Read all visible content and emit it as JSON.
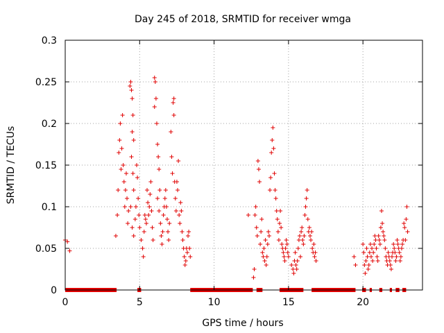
{
  "chart_data": {
    "type": "scatter",
    "title": "Day 245 of 2018, SRMTID for receiver wmga",
    "xlabel": "GPS time / hours",
    "ylabel": "SRMTID / TECUs",
    "xlim": [
      0,
      24
    ],
    "ylim": [
      0,
      0.3
    ],
    "xticks": [
      0,
      5,
      10,
      15,
      20
    ],
    "xtick_labels": [
      "0",
      "5",
      "10",
      "15",
      "20"
    ],
    "yticks": [
      0,
      0.05,
      0.1,
      0.15,
      0.2,
      0.25,
      0.3
    ],
    "ytick_labels": [
      "0",
      "0.05",
      "0.1",
      "0.15",
      "0.2",
      "0.25",
      "0.3"
    ],
    "grid": true,
    "marker": "+",
    "marker_color": "#e00000",
    "series": [
      {
        "name": "SRMTID",
        "points": [
          [
            0.0,
            0.06
          ],
          [
            0.15,
            0.058
          ],
          [
            0.3,
            0.047
          ],
          [
            3.4,
            0.065
          ],
          [
            3.5,
            0.09
          ],
          [
            3.55,
            0.12
          ],
          [
            3.6,
            0.165
          ],
          [
            3.65,
            0.18
          ],
          [
            3.7,
            0.2
          ],
          [
            3.75,
            0.145
          ],
          [
            3.8,
            0.17
          ],
          [
            3.85,
            0.21
          ],
          [
            3.9,
            0.15
          ],
          [
            3.95,
            0.13
          ],
          [
            4.0,
            0.1
          ],
          [
            4.05,
            0.12
          ],
          [
            4.1,
            0.14
          ],
          [
            4.15,
            0.11
          ],
          [
            4.2,
            0.08
          ],
          [
            4.25,
            0.095
          ],
          [
            4.35,
            0.245
          ],
          [
            4.4,
            0.25
          ],
          [
            4.45,
            0.24
          ],
          [
            4.5,
            0.23
          ],
          [
            4.55,
            0.21
          ],
          [
            4.5,
            0.19
          ],
          [
            4.6,
            0.18
          ],
          [
            4.45,
            0.16
          ],
          [
            4.55,
            0.14
          ],
          [
            4.6,
            0.12
          ],
          [
            4.4,
            0.1
          ],
          [
            4.5,
            0.075
          ],
          [
            4.6,
            0.065
          ],
          [
            4.7,
            0.085
          ],
          [
            4.75,
            0.1
          ],
          [
            4.8,
            0.15
          ],
          [
            4.85,
            0.135
          ],
          [
            4.9,
            0.11
          ],
          [
            4.95,
            0.09
          ],
          [
            5.0,
            0.075
          ],
          [
            5.1,
            0.06
          ],
          [
            5.2,
            0.05
          ],
          [
            5.25,
            0.04
          ],
          [
            5.3,
            0.07
          ],
          [
            5.35,
            0.09
          ],
          [
            5.4,
            0.085
          ],
          [
            5.45,
            0.08
          ],
          [
            5.5,
            0.12
          ],
          [
            5.55,
            0.105
          ],
          [
            5.6,
            0.09
          ],
          [
            5.65,
            0.1
          ],
          [
            5.7,
            0.115
          ],
          [
            5.75,
            0.13
          ],
          [
            5.8,
            0.095
          ],
          [
            5.85,
            0.075
          ],
          [
            5.9,
            0.06
          ],
          [
            6.0,
            0.255
          ],
          [
            6.05,
            0.25
          ],
          [
            6.1,
            0.23
          ],
          [
            6.0,
            0.22
          ],
          [
            6.15,
            0.2
          ],
          [
            6.2,
            0.175
          ],
          [
            6.25,
            0.16
          ],
          [
            6.3,
            0.145
          ],
          [
            6.35,
            0.12
          ],
          [
            6.2,
            0.11
          ],
          [
            6.3,
            0.095
          ],
          [
            6.4,
            0.08
          ],
          [
            6.45,
            0.065
          ],
          [
            6.5,
            0.055
          ],
          [
            6.55,
            0.07
          ],
          [
            6.6,
            0.09
          ],
          [
            6.65,
            0.1
          ],
          [
            6.7,
            0.11
          ],
          [
            6.75,
            0.12
          ],
          [
            6.8,
            0.1
          ],
          [
            6.85,
            0.085
          ],
          [
            6.9,
            0.07
          ],
          [
            6.95,
            0.06
          ],
          [
            7.0,
            0.08
          ],
          [
            7.1,
            0.19
          ],
          [
            7.15,
            0.16
          ],
          [
            7.2,
            0.14
          ],
          [
            7.25,
            0.225
          ],
          [
            7.3,
            0.23
          ],
          [
            7.3,
            0.21
          ],
          [
            7.35,
            0.13
          ],
          [
            7.4,
            0.11
          ],
          [
            7.45,
            0.095
          ],
          [
            7.5,
            0.13
          ],
          [
            7.55,
            0.12
          ],
          [
            7.6,
            0.155
          ],
          [
            7.65,
            0.09
          ],
          [
            7.7,
            0.08
          ],
          [
            7.75,
            0.105
          ],
          [
            7.8,
            0.095
          ],
          [
            7.85,
            0.07
          ],
          [
            7.9,
            0.06
          ],
          [
            7.95,
            0.05
          ],
          [
            8.0,
            0.04
          ],
          [
            8.05,
            0.03
          ],
          [
            8.1,
            0.035
          ],
          [
            8.15,
            0.05
          ],
          [
            8.2,
            0.045
          ],
          [
            8.25,
            0.065
          ],
          [
            8.3,
            0.07
          ],
          [
            8.35,
            0.05
          ],
          [
            8.4,
            0.04
          ],
          [
            12.3,
            0.09
          ],
          [
            12.65,
            0.015
          ],
          [
            12.7,
            0.025
          ],
          [
            12.75,
            0.09
          ],
          [
            12.8,
            0.1
          ],
          [
            12.85,
            0.075
          ],
          [
            12.9,
            0.065
          ],
          [
            12.95,
            0.155
          ],
          [
            13.0,
            0.145
          ],
          [
            13.05,
            0.13
          ],
          [
            13.1,
            0.055
          ],
          [
            13.15,
            0.07
          ],
          [
            13.2,
            0.085
          ],
          [
            13.25,
            0.045
          ],
          [
            13.3,
            0.04
          ],
          [
            13.35,
            0.05
          ],
          [
            13.4,
            0.035
          ],
          [
            13.45,
            0.06
          ],
          [
            13.5,
            0.03
          ],
          [
            13.55,
            0.04
          ],
          [
            13.6,
            0.055
          ],
          [
            13.65,
            0.07
          ],
          [
            13.7,
            0.065
          ],
          [
            13.75,
            0.12
          ],
          [
            13.8,
            0.135
          ],
          [
            13.85,
            0.165
          ],
          [
            13.9,
            0.18
          ],
          [
            13.95,
            0.195
          ],
          [
            14.0,
            0.17
          ],
          [
            14.05,
            0.14
          ],
          [
            14.1,
            0.12
          ],
          [
            14.15,
            0.11
          ],
          [
            14.2,
            0.095
          ],
          [
            14.25,
            0.085
          ],
          [
            14.3,
            0.07
          ],
          [
            14.35,
            0.06
          ],
          [
            14.4,
            0.08
          ],
          [
            14.45,
            0.095
          ],
          [
            14.5,
            0.075
          ],
          [
            14.55,
            0.055
          ],
          [
            14.6,
            0.05
          ],
          [
            14.65,
            0.045
          ],
          [
            14.7,
            0.04
          ],
          [
            14.75,
            0.035
          ],
          [
            14.8,
            0.05
          ],
          [
            14.85,
            0.06
          ],
          [
            14.9,
            0.055
          ],
          [
            14.95,
            0.045
          ],
          [
            15.0,
            0.04
          ],
          [
            15.2,
            0.03
          ],
          [
            15.3,
            0.025
          ],
          [
            15.35,
            0.02
          ],
          [
            15.4,
            0.035
          ],
          [
            15.45,
            0.045
          ],
          [
            15.5,
            0.03
          ],
          [
            15.55,
            0.025
          ],
          [
            15.6,
            0.035
          ],
          [
            15.65,
            0.05
          ],
          [
            15.7,
            0.06
          ],
          [
            15.75,
            0.065
          ],
          [
            15.8,
            0.04
          ],
          [
            15.85,
            0.07
          ],
          [
            15.9,
            0.075
          ],
          [
            15.95,
            0.06
          ],
          [
            16.0,
            0.055
          ],
          [
            16.05,
            0.065
          ],
          [
            16.1,
            0.09
          ],
          [
            16.15,
            0.1
          ],
          [
            16.2,
            0.11
          ],
          [
            16.25,
            0.12
          ],
          [
            16.3,
            0.085
          ],
          [
            16.35,
            0.07
          ],
          [
            16.4,
            0.075
          ],
          [
            16.45,
            0.065
          ],
          [
            16.5,
            0.06
          ],
          [
            16.55,
            0.07
          ],
          [
            16.6,
            0.05
          ],
          [
            16.65,
            0.045
          ],
          [
            16.7,
            0.055
          ],
          [
            16.75,
            0.04
          ],
          [
            16.8,
            0.045
          ],
          [
            16.85,
            0.035
          ],
          [
            19.4,
            0.04
          ],
          [
            19.5,
            0.03
          ],
          [
            20.0,
            0.055
          ],
          [
            20.05,
            0.045
          ],
          [
            20.1,
            0.03
          ],
          [
            20.15,
            0.02
          ],
          [
            20.2,
            0.035
          ],
          [
            20.25,
            0.05
          ],
          [
            20.3,
            0.04
          ],
          [
            20.35,
            0.025
          ],
          [
            20.4,
            0.03
          ],
          [
            20.45,
            0.045
          ],
          [
            20.5,
            0.055
          ],
          [
            20.55,
            0.04
          ],
          [
            20.6,
            0.05
          ],
          [
            20.65,
            0.035
          ],
          [
            20.7,
            0.045
          ],
          [
            20.75,
            0.055
          ],
          [
            20.8,
            0.065
          ],
          [
            20.85,
            0.06
          ],
          [
            20.9,
            0.05
          ],
          [
            20.95,
            0.04
          ],
          [
            21.0,
            0.035
          ],
          [
            21.05,
            0.065
          ],
          [
            21.1,
            0.06
          ],
          [
            21.15,
            0.055
          ],
          [
            21.2,
            0.075
          ],
          [
            21.25,
            0.095
          ],
          [
            21.3,
            0.08
          ],
          [
            21.35,
            0.07
          ],
          [
            21.4,
            0.065
          ],
          [
            21.45,
            0.06
          ],
          [
            21.5,
            0.05
          ],
          [
            21.55,
            0.04
          ],
          [
            21.6,
            0.035
          ],
          [
            21.65,
            0.03
          ],
          [
            21.7,
            0.045
          ],
          [
            21.75,
            0.04
          ],
          [
            21.8,
            0.035
          ],
          [
            21.85,
            0.03
          ],
          [
            21.9,
            0.025
          ],
          [
            21.95,
            0.04
          ],
          [
            22.0,
            0.045
          ],
          [
            22.05,
            0.055
          ],
          [
            22.1,
            0.05
          ],
          [
            22.15,
            0.045
          ],
          [
            22.2,
            0.035
          ],
          [
            22.25,
            0.04
          ],
          [
            22.3,
            0.06
          ],
          [
            22.35,
            0.055
          ],
          [
            22.4,
            0.05
          ],
          [
            22.45,
            0.045
          ],
          [
            22.5,
            0.035
          ],
          [
            22.55,
            0.04
          ],
          [
            22.6,
            0.05
          ],
          [
            22.65,
            0.055
          ],
          [
            22.7,
            0.06
          ],
          [
            22.75,
            0.08
          ],
          [
            22.8,
            0.075
          ],
          [
            22.85,
            0.06
          ],
          [
            22.9,
            0.085
          ],
          [
            22.95,
            0.1
          ],
          [
            23.0,
            0.07
          ]
        ],
        "zero_segments": [
          [
            0.0,
            3.45
          ],
          [
            4.85,
            5.1
          ],
          [
            8.4,
            12.6
          ],
          [
            12.85,
            13.25
          ],
          [
            14.4,
            16.0
          ],
          [
            16.55,
            19.5
          ],
          [
            19.95,
            20.2
          ],
          [
            20.45,
            20.6
          ],
          [
            21.1,
            21.3
          ],
          [
            21.8,
            21.95
          ],
          [
            22.2,
            22.45
          ],
          [
            22.65,
            22.9
          ]
        ]
      }
    ]
  }
}
